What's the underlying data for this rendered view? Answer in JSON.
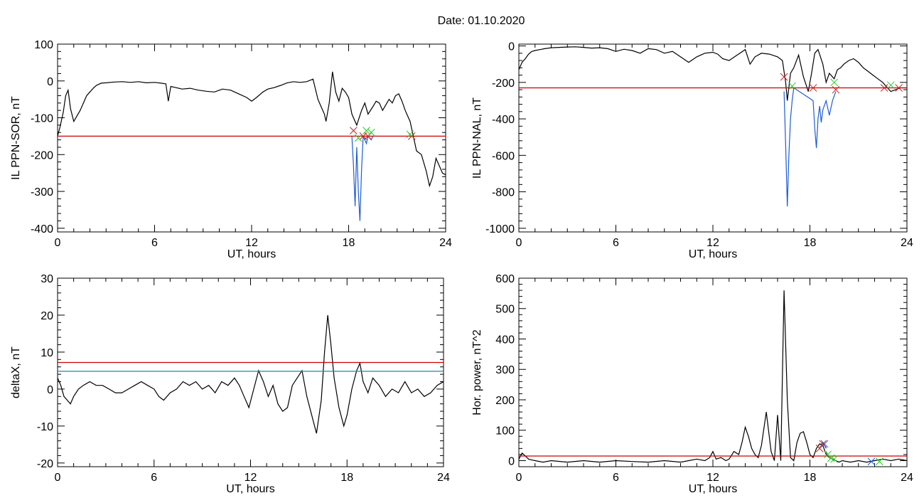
{
  "figure": {
    "title": "Date:  01.10.2020"
  },
  "chart_data": [
    {
      "type": "line",
      "ylabel": "IL PPN-SOR, nT",
      "xlabel": "UT, hours",
      "xlim": [
        0,
        24
      ],
      "ylim": [
        -410,
        100
      ],
      "xticks": [
        0,
        6,
        12,
        18,
        24
      ],
      "yticks": [
        100,
        0,
        -100,
        -200,
        -300,
        -400
      ],
      "series": [
        {
          "color": "#000000",
          "x": [
            0,
            0.15,
            0.35,
            0.5,
            0.65,
            0.8,
            1.0,
            1.2,
            1.4,
            1.6,
            1.8,
            2.0,
            2.2,
            2.4,
            2.7,
            3.0,
            3.5,
            4.0,
            4.5,
            5.0,
            5.5,
            6.0,
            6.4,
            6.7,
            6.85,
            7.0,
            7.3,
            7.7,
            8.2,
            8.7,
            9.2,
            9.7,
            10.2,
            10.7,
            11.2,
            11.7,
            12.0,
            12.3,
            12.7,
            13.0,
            13.4,
            13.8,
            14.2,
            14.6,
            15.0,
            15.4,
            15.8,
            16.1,
            16.3,
            16.5,
            16.6,
            16.8,
            17.0,
            17.2,
            17.4,
            17.6,
            17.8,
            18.0,
            18.2,
            18.5,
            18.8,
            19.0,
            19.2,
            19.5,
            19.7,
            19.9,
            20.1,
            20.3,
            20.5,
            20.7,
            20.9,
            21.1,
            21.3,
            21.5,
            21.8,
            22.0,
            22.2,
            22.5,
            22.8,
            23.0,
            23.2,
            23.4,
            23.6,
            23.8,
            24.0
          ],
          "y": [
            -150,
            -125,
            -85,
            -40,
            -25,
            -75,
            -110,
            -95,
            -80,
            -60,
            -40,
            -30,
            -20,
            -12,
            -6,
            -5,
            -3,
            -2,
            -4,
            -2,
            -5,
            -4,
            -6,
            -8,
            -55,
            -15,
            -18,
            -22,
            -20,
            -25,
            -28,
            -30,
            -22,
            -25,
            -35,
            -45,
            -55,
            -45,
            -30,
            -22,
            -18,
            -12,
            -5,
            -2,
            -4,
            -2,
            5,
            -50,
            -70,
            -90,
            -110,
            -60,
            25,
            -30,
            -55,
            -20,
            -30,
            -45,
            -90,
            -120,
            -80,
            -60,
            -90,
            -70,
            -55,
            -60,
            -80,
            -65,
            -50,
            -60,
            -40,
            -35,
            -55,
            -80,
            -110,
            -150,
            -190,
            -200,
            -245,
            -285,
            -260,
            -210,
            -230,
            -250,
            -255
          ]
        },
        {
          "color": "#1e5bd6",
          "x": [
            18.2,
            18.3,
            18.4,
            18.5,
            18.6,
            18.7,
            18.8,
            18.9,
            19.0,
            19.1,
            19.2,
            19.3,
            19.4,
            19.5
          ],
          "y": [
            -150,
            -230,
            -340,
            -180,
            -300,
            -380,
            -240,
            -150,
            -160,
            -170,
            -150,
            -155,
            -160,
            -150
          ]
        },
        {
          "color": "#cc0000",
          "x": [
            0,
            24
          ],
          "y": [
            -150,
            -150
          ]
        }
      ],
      "markers": {
        "red": {
          "x": [
            18.3,
            18.9,
            19.2,
            21.9
          ],
          "y": [
            -135,
            -150,
            -150,
            -150
          ]
        },
        "green": {
          "x": [
            18.6,
            19.1,
            19.4,
            21.8
          ],
          "y": [
            -155,
            -135,
            -140,
            -145
          ]
        }
      }
    },
    {
      "type": "line",
      "ylabel": "IL PPN-NAL, nT",
      "xlabel": "UT, hours",
      "xlim": [
        0,
        24
      ],
      "ylim": [
        -1020,
        10
      ],
      "xticks": [
        0,
        6,
        12,
        18,
        24
      ],
      "yticks": [
        0,
        -200,
        -400,
        -600,
        -800,
        -1000
      ],
      "series": [
        {
          "color": "#000000",
          "x": [
            0,
            0.2,
            0.4,
            0.6,
            0.8,
            1.0,
            1.3,
            1.6,
            2.0,
            2.5,
            3.0,
            3.5,
            4.0,
            4.5,
            5.0,
            5.5,
            6.0,
            6.5,
            7.0,
            7.5,
            8.0,
            8.5,
            9.0,
            9.5,
            10.0,
            10.5,
            11.0,
            11.5,
            12.0,
            12.3,
            12.6,
            13.0,
            13.5,
            14.0,
            14.3,
            14.6,
            15.0,
            15.5,
            16.0,
            16.3,
            16.5,
            16.6,
            16.8,
            17.0,
            17.3,
            17.6,
            17.9,
            18.1,
            18.3,
            18.5,
            18.8,
            19.0,
            19.2,
            19.5,
            19.7,
            19.9,
            20.1,
            20.4,
            20.7,
            21.0,
            21.3,
            21.6,
            21.9,
            22.2,
            22.5,
            22.8,
            23.0,
            23.3,
            23.6,
            24.0
          ],
          "y": [
            -130,
            -90,
            -70,
            -45,
            -30,
            -25,
            -20,
            -15,
            -10,
            -8,
            -6,
            -5,
            -8,
            -12,
            -10,
            -15,
            -30,
            -18,
            -25,
            -40,
            -15,
            -20,
            -40,
            -30,
            -60,
            -90,
            -60,
            -40,
            -35,
            -45,
            -70,
            -80,
            -50,
            -20,
            -100,
            -60,
            -40,
            -45,
            -60,
            -80,
            -200,
            -300,
            -150,
            -120,
            -50,
            -170,
            -250,
            -150,
            -40,
            -20,
            -100,
            -200,
            -150,
            -180,
            -130,
            -120,
            -100,
            -80,
            -70,
            -90,
            -120,
            -140,
            -160,
            -180,
            -200,
            -230,
            -250,
            -240,
            -230,
            -230
          ]
        },
        {
          "color": "#1e5bd6",
          "x": [
            16.4,
            16.5,
            16.6,
            16.7,
            16.8,
            16.9,
            17.0,
            18.2,
            18.3,
            18.4,
            18.5,
            18.6,
            18.7,
            18.8,
            19.0,
            19.2,
            19.4,
            19.6
          ],
          "y": [
            -250,
            -550,
            -880,
            -600,
            -400,
            -300,
            -230,
            -300,
            -450,
            -560,
            -400,
            -330,
            -420,
            -350,
            -300,
            -380,
            -300,
            -250
          ]
        },
        {
          "color": "#cc0000",
          "x": [
            0,
            24
          ],
          "y": [
            -230,
            -230
          ]
        }
      ],
      "markers": {
        "red": {
          "x": [
            16.4,
            18.2,
            19.6,
            22.6,
            23.5
          ],
          "y": [
            -170,
            -230,
            -240,
            -230,
            -230
          ]
        },
        "green": {
          "x": [
            16.9,
            19.5,
            23.0
          ],
          "y": [
            -220,
            -200,
            -215
          ]
        }
      }
    },
    {
      "type": "line",
      "ylabel": "deltaX, nT",
      "xlabel": "UT, hours",
      "xlim": [
        0,
        24
      ],
      "ylim": [
        -21,
        30
      ],
      "xticks": [
        0,
        6,
        12,
        18,
        24
      ],
      "yticks": [
        30,
        20,
        10,
        0,
        -10,
        -20
      ],
      "series": [
        {
          "color": "#000000",
          "x": [
            0,
            0.2,
            0.4,
            0.6,
            0.8,
            1.0,
            1.3,
            1.6,
            2.0,
            2.4,
            2.8,
            3.2,
            3.6,
            4.0,
            4.4,
            4.8,
            5.2,
            5.6,
            6.0,
            6.3,
            6.6,
            7.0,
            7.4,
            7.8,
            8.2,
            8.6,
            9.0,
            9.4,
            9.8,
            10.2,
            10.6,
            11.0,
            11.3,
            11.6,
            11.9,
            12.2,
            12.5,
            12.8,
            13.1,
            13.4,
            13.7,
            14.0,
            14.3,
            14.6,
            14.9,
            15.2,
            15.5,
            15.8,
            16.1,
            16.4,
            16.6,
            16.8,
            17.0,
            17.2,
            17.5,
            17.8,
            18.0,
            18.3,
            18.6,
            18.8,
            19.0,
            19.3,
            19.6,
            20.0,
            20.4,
            20.8,
            21.2,
            21.6,
            22.0,
            22.4,
            22.8,
            23.2,
            23.6,
            24.0
          ],
          "y": [
            3,
            1,
            -2,
            -3,
            -4,
            -2,
            0,
            1,
            2,
            1,
            1,
            0,
            -1,
            -1,
            0,
            1,
            2,
            1,
            0,
            -2,
            -3,
            -1,
            0,
            2,
            1,
            2,
            0,
            1,
            -1,
            2,
            1,
            3,
            1,
            -2,
            -5,
            0,
            5,
            2,
            -2,
            1,
            -4,
            -6,
            -5,
            1,
            3,
            5,
            -2,
            -7,
            -12,
            -3,
            10,
            20,
            12,
            3,
            -5,
            -10,
            -7,
            0,
            5,
            7,
            2,
            -1,
            3,
            1,
            -2,
            0,
            -1,
            2,
            -1,
            0,
            -2,
            -1,
            1,
            2
          ]
        },
        {
          "color": "#cc0000",
          "x": [
            0,
            24
          ],
          "y": [
            7.2,
            7.2
          ]
        },
        {
          "color": "#1a8ab0",
          "x": [
            0,
            24
          ],
          "y": [
            4.8,
            4.8
          ]
        }
      ]
    },
    {
      "type": "line",
      "ylabel": "Hor. power, nT^2",
      "xlabel": "UT, hours",
      "xlim": [
        0,
        24
      ],
      "ylim": [
        -20,
        600
      ],
      "xticks": [
        0,
        6,
        12,
        18,
        24
      ],
      "yticks": [
        600,
        500,
        400,
        300,
        200,
        100,
        0
      ],
      "series": [
        {
          "color": "#000000",
          "x": [
            0,
            0.2,
            0.4,
            0.6,
            0.8,
            1.0,
            1.5,
            2.0,
            3.0,
            4.0,
            5.0,
            6.0,
            7.0,
            8.0,
            9.0,
            10.0,
            10.5,
            11.0,
            11.5,
            11.8,
            12.0,
            12.2,
            12.5,
            12.8,
            13.0,
            13.3,
            13.6,
            13.8,
            14.0,
            14.2,
            14.4,
            14.6,
            14.8,
            15.0,
            15.3,
            15.6,
            15.8,
            16.0,
            16.2,
            16.4,
            16.6,
            16.8,
            17.0,
            17.2,
            17.4,
            17.6,
            17.8,
            18.0,
            18.2,
            18.4,
            18.6,
            18.8,
            19.0,
            19.2,
            19.4,
            19.6,
            19.8,
            20.0,
            20.5,
            21.0,
            21.5,
            22.0,
            22.5,
            23.0,
            23.5,
            24.0
          ],
          "y": [
            5,
            25,
            15,
            5,
            2,
            0,
            -5,
            0,
            -5,
            0,
            -5,
            0,
            -3,
            -5,
            0,
            -5,
            0,
            5,
            0,
            10,
            30,
            5,
            10,
            0,
            5,
            30,
            20,
            60,
            110,
            80,
            40,
            20,
            10,
            50,
            160,
            30,
            0,
            150,
            0,
            560,
            200,
            10,
            0,
            60,
            90,
            95,
            60,
            20,
            10,
            40,
            55,
            50,
            20,
            10,
            5,
            0,
            -5,
            0,
            -5,
            0,
            -5,
            0,
            5,
            0,
            5,
            0
          ]
        },
        {
          "color": "#1e5bd6",
          "x": [
            18.7,
            18.8,
            18.9,
            19.0
          ],
          "y": [
            55,
            60,
            50,
            40
          ]
        },
        {
          "color": "#2e9e2e",
          "x": [
            19.0,
            19.2,
            19.4,
            19.6
          ],
          "y": [
            30,
            10,
            5,
            0
          ]
        },
        {
          "color": "#cc0000",
          "x": [
            0,
            24
          ],
          "y": [
            15,
            15
          ]
        }
      ],
      "markers": {
        "red": {
          "x": [
            18.6,
            18.8
          ],
          "y": [
            40,
            55
          ]
        },
        "blue": {
          "x": [
            18.9,
            21.8
          ],
          "y": [
            55,
            -3
          ]
        },
        "green": {
          "x": [
            19.1,
            19.3,
            19.5,
            22.3
          ],
          "y": [
            20,
            8,
            5,
            -3
          ]
        }
      }
    }
  ]
}
